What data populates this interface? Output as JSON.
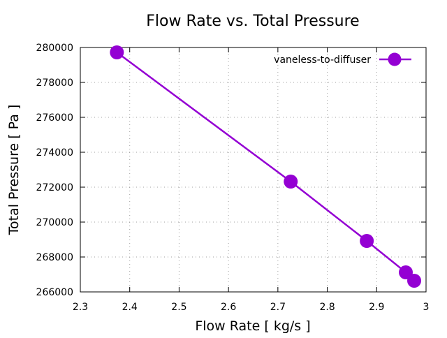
{
  "chart_data": {
    "type": "line",
    "title": "Flow Rate vs. Total Pressure",
    "xlabel": "Flow Rate [ kg/s ]",
    "ylabel": "Total Pressure [ Pa ]",
    "xlim": [
      2.3,
      3.0
    ],
    "ylim": [
      266000,
      280000
    ],
    "xticks": [
      2.3,
      2.4,
      2.5,
      2.6,
      2.7,
      2.8,
      2.9,
      3
    ],
    "xtick_labels": [
      "2.3",
      "2.4",
      "2.5",
      "2.6",
      "2.7",
      "2.8",
      "2.9",
      "3"
    ],
    "yticks": [
      266000,
      268000,
      270000,
      272000,
      274000,
      276000,
      278000,
      280000
    ],
    "ytick_labels": [
      "266000",
      "268000",
      "270000",
      "272000",
      "274000",
      "276000",
      "278000",
      "280000"
    ],
    "grid": true,
    "legend_position": "top-right",
    "series": [
      {
        "name": "vaneless-to-diffuser",
        "color": "#9400d3",
        "marker": "circle",
        "x": [
          2.374,
          2.726,
          2.88,
          2.959,
          2.976
        ],
        "y": [
          279720,
          272320,
          268920,
          267120,
          266640
        ]
      }
    ]
  }
}
